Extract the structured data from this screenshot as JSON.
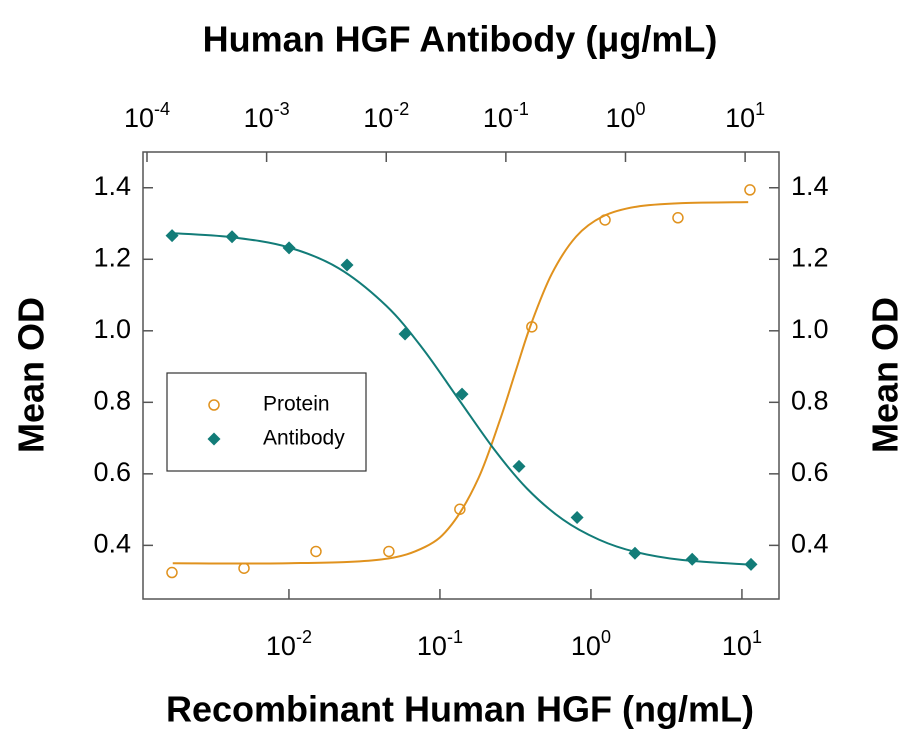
{
  "chart_data": {
    "type": "scatter",
    "x_label": "Recombinant Human HGF (ng/mL)",
    "x2_label": "Human HGF Antibody (μg/mL)",
    "y_label": "Mean OD",
    "y2_label": "Mean OD",
    "xscale": "log",
    "x2scale": "log",
    "xlim": [
      0.00108,
      17.6
    ],
    "xticks": [
      {
        "value": 0.01,
        "label": "10-2"
      },
      {
        "value": 0.1,
        "label": "10-1"
      },
      {
        "value": 1,
        "label": "100"
      },
      {
        "value": 10,
        "label": "101"
      }
    ],
    "x2lim": [
      9.26e-05,
      19.2
    ],
    "x2ticks": [
      {
        "value": 0.0001,
        "label": "10-4"
      },
      {
        "value": 0.001,
        "label": "10-3"
      },
      {
        "value": 0.01,
        "label": "10-2"
      },
      {
        "value": 0.1,
        "label": "10-1"
      },
      {
        "value": 1,
        "label": "100"
      },
      {
        "value": 10,
        "label": "101"
      }
    ],
    "ylim": [
      0.25,
      1.5
    ],
    "yticks": [
      0.4,
      0.6,
      0.8,
      {
        "value": 1,
        "label": "1.0"
      },
      1.2,
      1.4
    ],
    "y2lim": [
      0.25,
      1.5
    ],
    "y2ticks": [
      0.4,
      0.6,
      0.8,
      {
        "value": 1,
        "label": "1.0"
      },
      1.2,
      1.4
    ],
    "legend": "left",
    "series": [
      {
        "name": "Protein",
        "color": "#e0921e",
        "marker": "circle",
        "xaxis": "x",
        "x": [
          0.00168,
          0.00504,
          0.0151,
          0.0459,
          0.1355,
          0.406,
          1.24,
          3.77,
          11.3
        ],
        "values": [
          0.324,
          0.336,
          0.383,
          0.383,
          0.501,
          1.011,
          1.31,
          1.316,
          1.394
        ],
        "fit_x": [
          0.0017,
          0.01,
          0.04,
          0.08,
          0.12,
          0.18,
          0.25,
          0.32,
          0.4,
          0.55,
          0.8,
          1.2,
          2,
          4,
          11
        ],
        "fit_values": [
          0.35,
          0.35,
          0.36,
          0.396,
          0.459,
          0.588,
          0.751,
          0.892,
          1.017,
          1.159,
          1.264,
          1.32,
          1.347,
          1.357,
          1.36
        ]
      },
      {
        "name": "Antibody",
        "color": "#127c78",
        "marker": "diamond",
        "xaxis": "x2",
        "x": [
          0.000162,
          0.000514,
          0.00154,
          0.0047,
          0.01436,
          0.043,
          0.1288,
          0.394,
          1.2,
          3.61,
          11.2
        ],
        "values": [
          1.266,
          1.263,
          1.232,
          1.184,
          0.991,
          0.823,
          0.621,
          0.478,
          0.378,
          0.361,
          0.347
        ],
        "fit_x": [
          0.00016,
          0.0005,
          0.0015,
          0.004,
          0.01,
          0.02,
          0.04,
          0.08,
          0.15,
          0.3,
          0.6,
          1.2,
          3,
          11
        ],
        "fit_values": [
          1.273,
          1.262,
          1.234,
          1.175,
          1.07,
          0.952,
          0.81,
          0.668,
          0.559,
          0.472,
          0.416,
          0.382,
          0.359,
          0.346
        ]
      }
    ]
  }
}
